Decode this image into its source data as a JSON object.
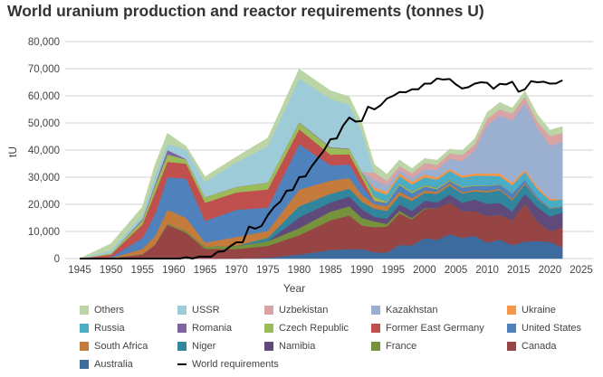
{
  "chart_data": {
    "type": "area",
    "title": "World uranium production and reactor requirements (tonnes U)",
    "xlabel": "Year",
    "ylabel": "tU",
    "xlim": [
      1945,
      2025
    ],
    "ylim": [
      0,
      80000
    ],
    "x_ticks": [
      "1945",
      "1950",
      "1955",
      "1960",
      "1965",
      "1970",
      "1975",
      "1980",
      "1985",
      "1990",
      "1995",
      "2000",
      "2005",
      "2010",
      "2015",
      "2020",
      "2025"
    ],
    "y_ticks": [
      "0",
      "10,000",
      "20,000",
      "30,000",
      "40,000",
      "50,000",
      "60,000",
      "70,000",
      "80,000"
    ],
    "grid": true,
    "legend_position": "bottom",
    "stacked": true,
    "years": [
      1945,
      1950,
      1955,
      1957,
      1959,
      1962,
      1965,
      1970,
      1975,
      1980,
      1985,
      1988,
      1990,
      1992,
      1994,
      1996,
      1998,
      2000,
      2002,
      2004,
      2006,
      2008,
      2010,
      2012,
      2014,
      2016,
      2018,
      2020,
      2022
    ],
    "series": [
      {
        "name": "Australia",
        "color": "#3e6b9e",
        "values": [
          0,
          0,
          0,
          0,
          0,
          0,
          0,
          0,
          300,
          1500,
          3200,
          3500,
          3500,
          2300,
          2200,
          5000,
          4900,
          7600,
          6900,
          9000,
          7600,
          8400,
          5900,
          7000,
          5000,
          6300,
          6500,
          6200,
          4100
        ]
      },
      {
        "name": "Canada",
        "color": "#974444",
        "values": [
          0,
          200,
          1500,
          5000,
          12500,
          9500,
          3600,
          3500,
          4400,
          7100,
          10900,
          12400,
          8700,
          9300,
          9600,
          11700,
          9500,
          10700,
          11600,
          11600,
          9900,
          9000,
          9800,
          9000,
          9100,
          14000,
          7000,
          3900,
          7300
        ]
      },
      {
        "name": "France",
        "color": "#76923c",
        "values": [
          0,
          0,
          100,
          200,
          500,
          600,
          800,
          1200,
          1700,
          2600,
          3200,
          3400,
          2800,
          2100,
          1000,
          900,
          500,
          300,
          0,
          0,
          0,
          0,
          0,
          0,
          0,
          0,
          0,
          0,
          0
        ]
      },
      {
        "name": "Namibia",
        "color": "#604a7b",
        "values": [
          0,
          0,
          0,
          0,
          0,
          0,
          0,
          0,
          0,
          4000,
          3400,
          3600,
          3200,
          1700,
          1900,
          2400,
          2700,
          2700,
          2300,
          3000,
          3100,
          4400,
          4500,
          4500,
          3300,
          3600,
          5500,
          5400,
          5600
        ]
      },
      {
        "name": "Niger",
        "color": "#31859c",
        "values": [
          0,
          0,
          0,
          0,
          0,
          0,
          0,
          0,
          1300,
          4100,
          3200,
          2900,
          2800,
          3000,
          2900,
          3300,
          3700,
          2900,
          3100,
          3300,
          3400,
          3000,
          4200,
          4700,
          4100,
          3500,
          2900,
          2900,
          2000
        ]
      },
      {
        "name": "South Africa",
        "color": "#c57b3c",
        "values": [
          0,
          0,
          2000,
          3000,
          5000,
          4900,
          1500,
          3300,
          2500,
          6100,
          4900,
          3900,
          2500,
          1700,
          1700,
          1400,
          1000,
          900,
          800,
          800,
          500,
          600,
          600,
          500,
          600,
          500,
          300,
          250,
          200
        ]
      },
      {
        "name": "United States",
        "color": "#4f81bd",
        "values": [
          0,
          300,
          4000,
          8000,
          12000,
          14500,
          8000,
          10000,
          8600,
          16800,
          5600,
          5000,
          3400,
          1000,
          1200,
          2400,
          1800,
          1500,
          900,
          900,
          1700,
          1400,
          1700,
          1600,
          1900,
          1100,
          600,
          6,
          75
        ]
      },
      {
        "name": "Former East Germany",
        "color": "#c0504d",
        "values": [
          0,
          1000,
          5000,
          8000,
          5700,
          5500,
          6700,
          6400,
          6700,
          5500,
          3900,
          3800,
          3000,
          200,
          0,
          0,
          0,
          0,
          0,
          0,
          0,
          0,
          0,
          0,
          0,
          0,
          0,
          0,
          0
        ]
      },
      {
        "name": "Czech Republic",
        "color": "#9bbb59",
        "values": [
          0,
          500,
          1500,
          2500,
          2700,
          1500,
          2000,
          2000,
          2500,
          2500,
          2500,
          2000,
          1900,
          1600,
          500,
          600,
          600,
          500,
          500,
          400,
          400,
          300,
          250,
          230,
          100,
          0,
          0,
          0,
          0
        ]
      },
      {
        "name": "Romania",
        "color": "#8064a2",
        "values": [
          0,
          0,
          500,
          800,
          1700,
          200,
          100,
          100,
          100,
          200,
          300,
          200,
          200,
          100,
          100,
          100,
          100,
          100,
          100,
          100,
          0,
          0,
          0,
          0,
          0,
          0,
          0,
          0,
          0
        ]
      },
      {
        "name": "Russia",
        "color": "#4bacc6",
        "values": [
          0,
          0,
          0,
          0,
          0,
          0,
          0,
          0,
          0,
          0,
          0,
          0,
          0,
          2200,
          2500,
          2600,
          2500,
          2800,
          2900,
          3200,
          3200,
          3500,
          3600,
          2900,
          3000,
          3000,
          2900,
          2800,
          2500
        ]
      },
      {
        "name": "Ukraine",
        "color": "#f79646",
        "values": [
          0,
          0,
          0,
          0,
          0,
          0,
          0,
          0,
          0,
          0,
          0,
          0,
          0,
          1000,
          1000,
          1000,
          1000,
          1000,
          800,
          800,
          800,
          800,
          850,
          960,
          900,
          800,
          800,
          700,
          100
        ]
      },
      {
        "name": "Kazakhstan",
        "color": "#9bb0d0",
        "values": [
          0,
          0,
          0,
          0,
          0,
          0,
          0,
          0,
          0,
          0,
          0,
          0,
          0,
          2800,
          2200,
          1300,
          1300,
          1900,
          2800,
          3700,
          5300,
          8500,
          17800,
          21300,
          23100,
          24600,
          21700,
          19500,
          21200
        ]
      },
      {
        "name": "Uzbekistan",
        "color": "#d9a3a3",
        "values": [
          0,
          0,
          0,
          0,
          0,
          0,
          0,
          0,
          0,
          0,
          0,
          0,
          0,
          2700,
          2000,
          1500,
          1900,
          2400,
          1900,
          2000,
          2300,
          2300,
          2400,
          2400,
          2400,
          2400,
          2400,
          3500,
          3300
        ]
      },
      {
        "name": "USSR",
        "color": "#9ecbd8",
        "values": [
          0,
          1000,
          1500,
          3000,
          2200,
          3500,
          5500,
          9000,
          13400,
          16000,
          17800,
          16000,
          15000,
          0,
          0,
          0,
          0,
          0,
          0,
          0,
          0,
          0,
          0,
          0,
          0,
          0,
          0,
          0,
          0
        ]
      },
      {
        "name": "Others",
        "color": "#bcd5a6",
        "values": [
          0,
          2500,
          3000,
          4000,
          3900,
          1200,
          2000,
          2000,
          3000,
          3500,
          3000,
          3000,
          3000,
          3000,
          2300,
          2200,
          1700,
          1600,
          1700,
          1600,
          1600,
          2000,
          2300,
          2500,
          2000,
          2000,
          2600,
          2200,
          2300
        ]
      }
    ],
    "line": {
      "name": "World requirements",
      "color": "#000000",
      "years": [
        1945,
        1960,
        1961,
        1962,
        1963,
        1964,
        1965,
        1966,
        1967,
        1968,
        1969,
        1970,
        1971,
        1972,
        1973,
        1974,
        1975,
        1976,
        1977,
        1978,
        1979,
        1980,
        1981,
        1982,
        1983,
        1984,
        1985,
        1986,
        1987,
        1988,
        1989,
        1990,
        1991,
        1992,
        1993,
        1994,
        1995,
        1996,
        1997,
        1998,
        1999,
        2000,
        2001,
        2002,
        2003,
        2004,
        2005,
        2006,
        2007,
        2008,
        2009,
        2010,
        2011,
        2012,
        2013,
        2014,
        2015,
        2016,
        2017,
        2018,
        2019,
        2020,
        2021,
        2022
      ],
      "values": [
        0,
        0,
        0,
        500,
        0,
        700,
        700,
        700,
        2500,
        2700,
        4500,
        6000,
        6000,
        11800,
        11000,
        12000,
        16000,
        19000,
        21000,
        25000,
        25300,
        30000,
        30300,
        34000,
        37000,
        40000,
        44000,
        44300,
        49000,
        52000,
        50500,
        50700,
        56000,
        55000,
        56500,
        59000,
        60000,
        61400,
        61300,
        62400,
        62400,
        64500,
        64500,
        66400,
        66000,
        66200,
        64200,
        62700,
        63200,
        64500,
        65000,
        64800,
        62600,
        64400,
        64200,
        65200,
        61500,
        62400,
        65400,
        65000,
        65200,
        64500,
        64600,
        65700
      ]
    },
    "legend": [
      "Others",
      "USSR",
      "Uzbekistan",
      "Kazakhstan",
      "Ukraine",
      "Russia",
      "Romania",
      "Czech Republic",
      "Former East Germany",
      "United States",
      "South Africa",
      "Niger",
      "Namibia",
      "France",
      "Canada",
      "Australia",
      "World requirements"
    ]
  }
}
